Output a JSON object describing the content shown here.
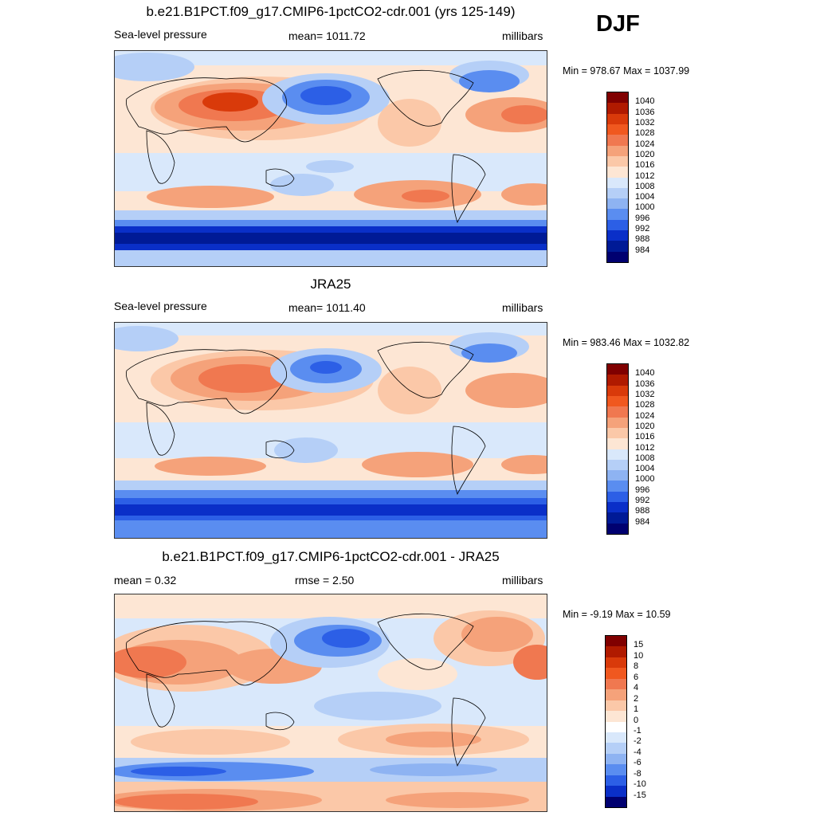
{
  "season": "DJF",
  "panels": [
    {
      "title": "b.e21.B1PCT.f09_g17.CMIP6-1pctCO2-cdr.001 (yrs 125-149)",
      "left_label": "Sea-level pressure",
      "center_label": "mean= 1011.72",
      "units": "millibars",
      "minmax": "Min = 978.67 Max = 1037.99",
      "colorbar_labels": [
        "1040",
        "1036",
        "1032",
        "1028",
        "1024",
        "1020",
        "1016",
        "1012",
        "1008",
        "1004",
        "1000",
        "996",
        "992",
        "988",
        "984"
      ]
    },
    {
      "title": "JRA25",
      "left_label": "Sea-level pressure",
      "center_label": "mean= 1011.40",
      "units": "millibars",
      "minmax": "Min = 983.46 Max = 1032.82",
      "colorbar_labels": [
        "1040",
        "1036",
        "1032",
        "1028",
        "1024",
        "1020",
        "1016",
        "1012",
        "1008",
        "1004",
        "1000",
        "996",
        "992",
        "988",
        "984"
      ]
    },
    {
      "title": "b.e21.B1PCT.f09_g17.CMIP6-1pctCO2-cdr.001 - JRA25",
      "left_label": "mean =   0.32",
      "center_label": "rmse =   2.50",
      "units": "millibars",
      "minmax": "Min =  -9.19 Max =  10.59",
      "colorbar_labels": [
        "15",
        "10",
        "8",
        "6",
        "4",
        "2",
        "1",
        "0",
        "-1",
        "-2",
        "-4",
        "-6",
        "-8",
        "-10",
        "-15"
      ]
    }
  ],
  "colors": {
    "abs_scale": [
      "#800000",
      "#b01a00",
      "#d93a0a",
      "#f0581f",
      "#f07850",
      "#f5a27a",
      "#fbc8a8",
      "#fde6d4",
      "#d9e8fb",
      "#b5cff7",
      "#8eb3f2",
      "#5a8df0",
      "#2c5fe6",
      "#0a2fc8",
      "#001a96",
      "#000070"
    ],
    "diff_scale": [
      "#800000",
      "#b01a00",
      "#d93a0a",
      "#f0581f",
      "#f07850",
      "#f5a27a",
      "#fbc8a8",
      "#fde6d4",
      "#ffffff",
      "#d9e8fb",
      "#b5cff7",
      "#8eb3f2",
      "#5a8df0",
      "#2c5fe6",
      "#0a2fc8",
      "#000070"
    ]
  }
}
